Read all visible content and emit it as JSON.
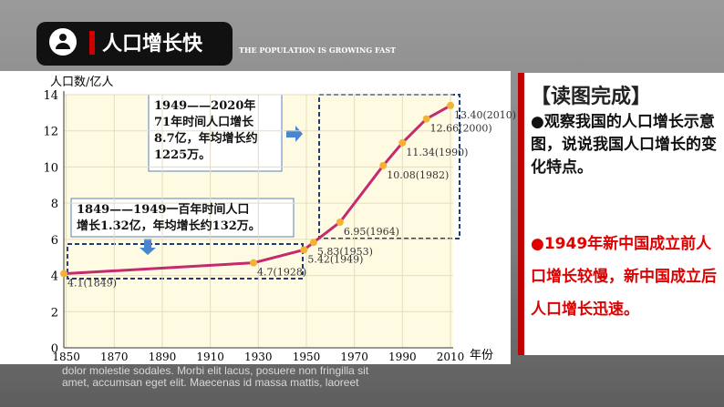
{
  "header": {
    "title": "人口增长快",
    "subtitle": "THE POPULATION IS GROWING FAST"
  },
  "chart_data": {
    "type": "line",
    "y_label": "人口数/亿人",
    "x_label": "年份",
    "x": [
      1849,
      1928,
      1949,
      1953,
      1964,
      1982,
      1990,
      2000,
      2010
    ],
    "series": [
      {
        "color": "#c42a6e",
        "marker_color": "#f2b234",
        "values": [
          4.1,
          4.7,
          5.42,
          5.83,
          6.95,
          10.08,
          11.34,
          12.66,
          13.4
        ],
        "value_labels": [
          "4.1(1849)",
          "4.7(1928)",
          "5.42(1949)",
          "5.83(1953)",
          "6.95(1964)",
          "10.08(1982)",
          "11.34(1990)",
          "12.66(2000)",
          "13.40(2010)"
        ]
      }
    ],
    "xlim": [
      1849,
      2010
    ],
    "xticks": [
      1850,
      1870,
      1890,
      1910,
      1930,
      1950,
      1970,
      1990,
      2010
    ],
    "ylim": [
      0,
      14
    ],
    "yticks": [
      0,
      2,
      4,
      6,
      8,
      10,
      12,
      14
    ],
    "grid": true,
    "annotations": [
      {
        "lines": [
          "1949——2020年",
          "71年时间人口增长",
          "8.7亿，年均增长约",
          "1225万。"
        ]
      },
      {
        "lines": [
          "1849——1949一百年时间人口",
          "增长1.32亿，年均增长约132万。"
        ]
      }
    ]
  },
  "sidebar": {
    "heading": "【读图完成】",
    "question": "●观察我国的人口增长示意图，说说我国人口增长的变化特点。",
    "answer": "●1949年新中国成立前人口增长较慢，新中国成立后人口增长迅速。"
  },
  "footer": {
    "lines": [
      "dolor molestie sodales. Morbi elit lacus, posuere non fringilla sit",
      "amet, accumsan eget elit. Maecenas id massa mattis, laoreet"
    ]
  }
}
